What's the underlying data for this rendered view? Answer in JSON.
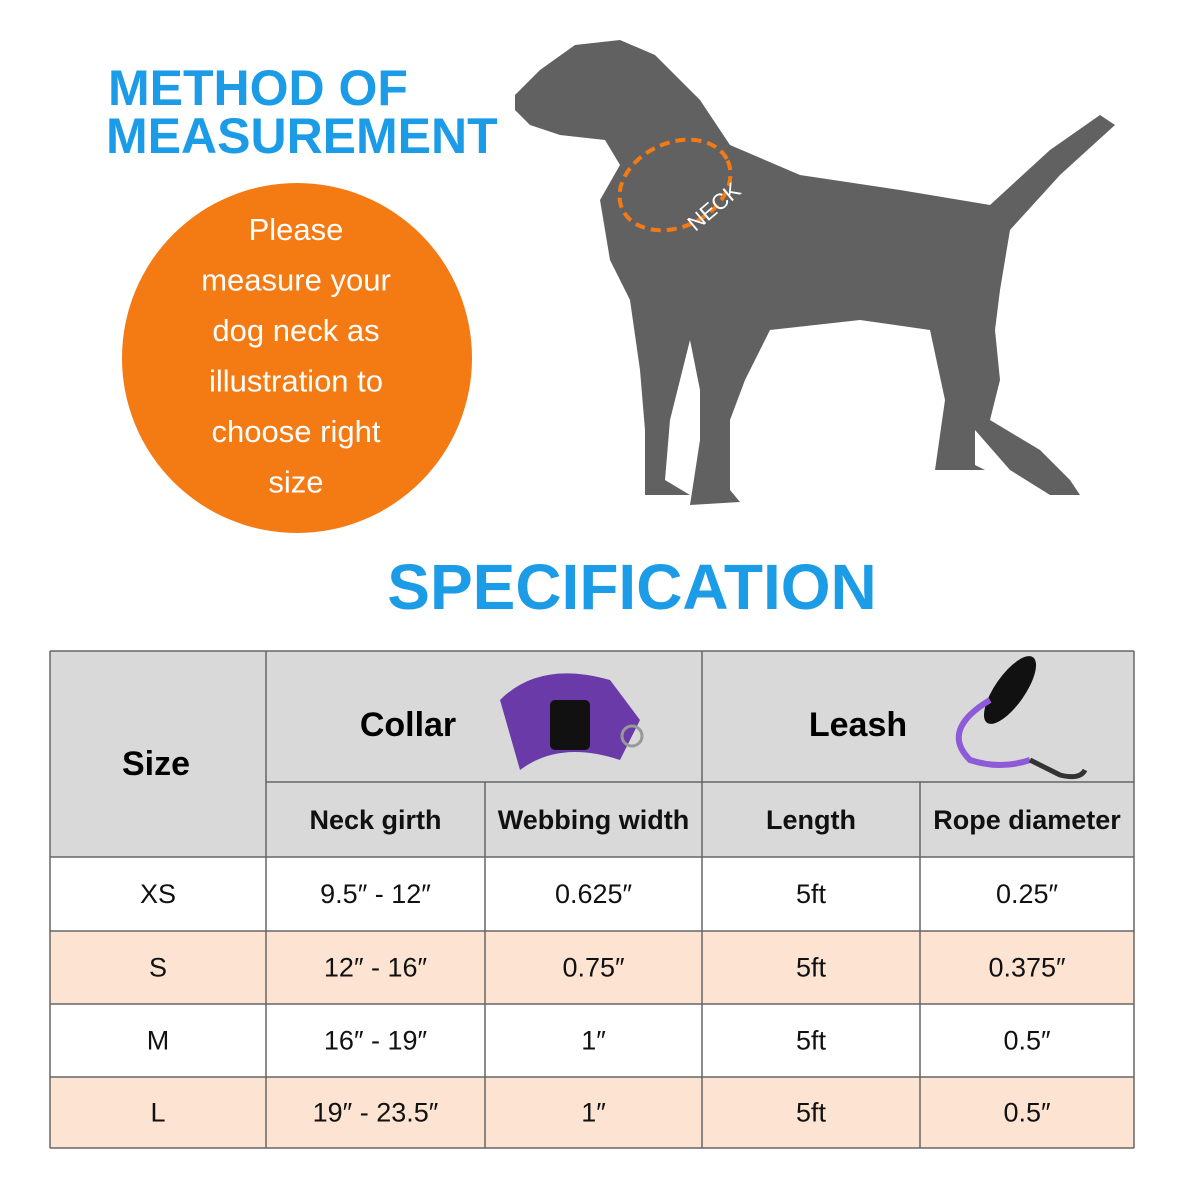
{
  "measurement": {
    "title_lines": [
      "METHOD OF",
      "MEASUREMENT"
    ],
    "instruction_lines": [
      "Please",
      "measure your",
      "dog neck as",
      "illustration to",
      "choose right",
      "size"
    ],
    "neck_label": "NECK"
  },
  "specification": {
    "title": "SPECIFICATION",
    "size_header": "Size",
    "collar_header": "Collar",
    "leash_header": "Leash",
    "subheaders": [
      "Neck girth",
      "Webbing width",
      "Length",
      "Rope diameter"
    ],
    "rows": [
      [
        "XS",
        "9.5″ - 12″",
        "0.625″",
        "5ft",
        "0.25″"
      ],
      [
        "S",
        "12″ - 16″",
        "0.75″",
        "5ft",
        "0.375″"
      ],
      [
        "M",
        "16″ - 19″",
        "1″",
        "5ft",
        "0.5″"
      ],
      [
        "L",
        "19″ - 23.5″",
        "1″",
        "5ft",
        "0.5″"
      ]
    ]
  }
}
